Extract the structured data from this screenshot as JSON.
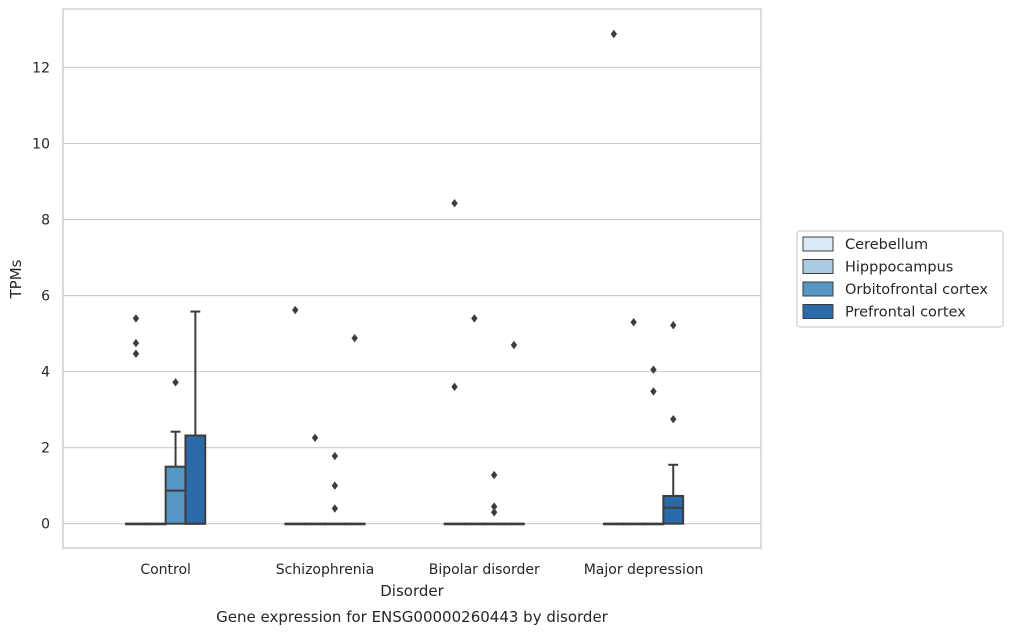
{
  "chart_data": {
    "type": "box",
    "title": "",
    "caption": "Gene expression for ENSG00000260443 by disorder",
    "xlabel": "Disorder",
    "ylabel": "TPMs",
    "ylim": [
      -0.65,
      13.5
    ],
    "yticks": [
      0,
      2,
      4,
      6,
      8,
      10,
      12
    ],
    "grid": "horizontal",
    "legend_position": "right",
    "categories": [
      "Control",
      "Schizophrenia",
      "Bipolar disorder",
      "Major depression"
    ],
    "series": [
      {
        "name": "Cerebellum",
        "color": "#dbe9f6",
        "boxes": [
          {
            "q1": 0,
            "median": 0,
            "q3": 0,
            "whisker_low": 0,
            "whisker_high": 0,
            "outliers": [
              5.4,
              4.75,
              4.47
            ]
          },
          {
            "q1": 0,
            "median": 0,
            "q3": 0,
            "whisker_low": 0,
            "whisker_high": 0,
            "outliers": [
              5.62
            ]
          },
          {
            "q1": 0,
            "median": 0,
            "q3": 0,
            "whisker_low": 0,
            "whisker_high": 0,
            "outliers": [
              8.43,
              3.6
            ]
          },
          {
            "q1": 0,
            "median": 0,
            "q3": 0,
            "whisker_low": 0,
            "whisker_high": 0,
            "outliers": [
              12.88
            ]
          }
        ]
      },
      {
        "name": "Hipppocampus",
        "color": "#a9cce3",
        "boxes": [
          {
            "q1": 0,
            "median": 0,
            "q3": 0,
            "whisker_low": 0,
            "whisker_high": 0,
            "outliers": []
          },
          {
            "q1": 0,
            "median": 0,
            "q3": 0,
            "whisker_low": 0,
            "whisker_high": 0,
            "outliers": [
              2.26
            ]
          },
          {
            "q1": 0,
            "median": 0,
            "q3": 0,
            "whisker_low": 0,
            "whisker_high": 0,
            "outliers": [
              5.4
            ]
          },
          {
            "q1": 0,
            "median": 0,
            "q3": 0,
            "whisker_low": 0,
            "whisker_high": 0,
            "outliers": [
              5.3
            ]
          }
        ]
      },
      {
        "name": "Orbitofrontal cortex",
        "color": "#5497c5",
        "boxes": [
          {
            "q1": 0,
            "median": 0.87,
            "q3": 1.5,
            "whisker_low": 0,
            "whisker_high": 2.42,
            "outliers": [
              3.72
            ]
          },
          {
            "q1": 0,
            "median": 0,
            "q3": 0,
            "whisker_low": 0,
            "whisker_high": 0,
            "outliers": [
              1.78,
              1.0,
              0.4
            ]
          },
          {
            "q1": 0,
            "median": 0,
            "q3": 0,
            "whisker_low": 0,
            "whisker_high": 0,
            "outliers": [
              1.28,
              0.45,
              0.3
            ]
          },
          {
            "q1": 0,
            "median": 0,
            "q3": 0,
            "whisker_low": 0,
            "whisker_high": 0,
            "outliers": [
              4.05,
              3.48
            ]
          }
        ]
      },
      {
        "name": "Prefrontal cortex",
        "color": "#2b6aa8",
        "boxes": [
          {
            "q1": 0,
            "median": 0,
            "q3": 2.32,
            "whisker_low": 0,
            "whisker_high": 5.58,
            "outliers": []
          },
          {
            "q1": 0,
            "median": 0,
            "q3": 0,
            "whisker_low": 0,
            "whisker_high": 0,
            "outliers": [
              4.88
            ]
          },
          {
            "q1": 0,
            "median": 0,
            "q3": 0,
            "whisker_low": 0,
            "whisker_high": 0,
            "outliers": [
              4.7
            ]
          },
          {
            "q1": 0,
            "median": 0.42,
            "q3": 0.73,
            "whisker_low": 0,
            "whisker_high": 1.55,
            "outliers": [
              2.75,
              5.22
            ]
          }
        ]
      }
    ],
    "colors": {
      "grid": "#cccccc",
      "frame": "#cccccc",
      "line": "#3d3d3d",
      "text": "#262626"
    }
  }
}
